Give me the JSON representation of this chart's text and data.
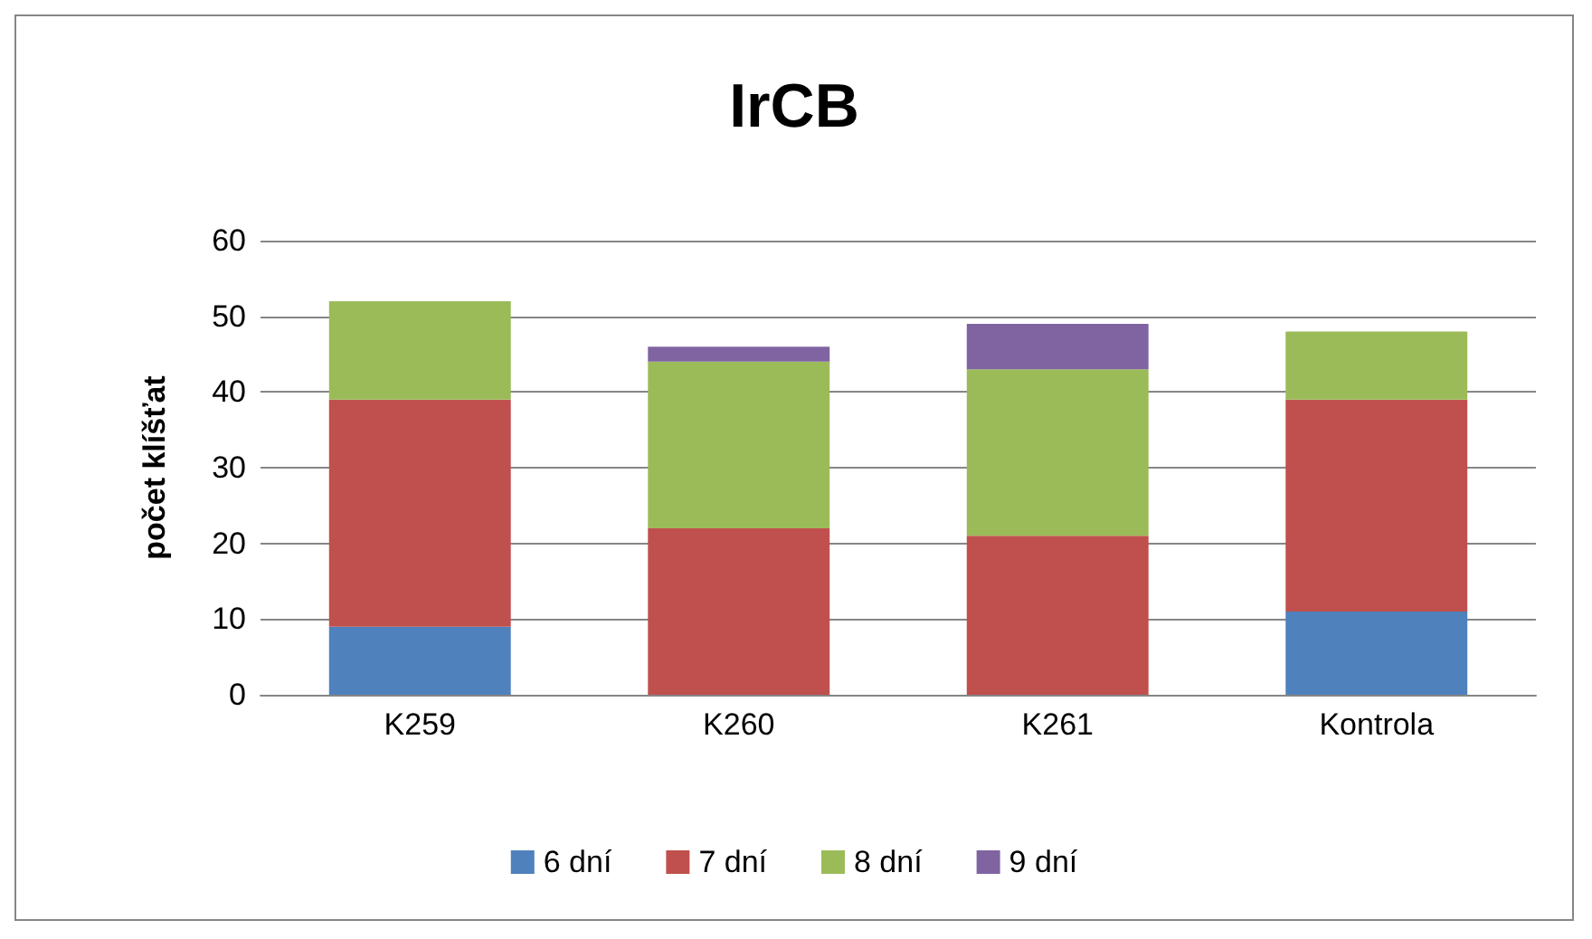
{
  "chart_data": {
    "type": "bar",
    "title": "IrCB",
    "ylabel": "počet klíšťat",
    "categories": [
      "K259",
      "K260",
      "K261",
      "Kontrola"
    ],
    "series": [
      {
        "name": "6 dní",
        "color": "#4f81bd",
        "values": [
          9,
          0,
          0,
          11
        ]
      },
      {
        "name": "7 dní",
        "color": "#c0504d",
        "values": [
          30,
          22,
          21,
          28
        ]
      },
      {
        "name": "8 dní",
        "color": "#9bbb59",
        "values": [
          13,
          22,
          22,
          9
        ]
      },
      {
        "name": "9 dní",
        "color": "#8064a2",
        "values": [
          0,
          2,
          6,
          0
        ]
      }
    ],
    "stacked": true,
    "ylim": [
      0,
      60
    ],
    "yticks": [
      0,
      10,
      20,
      30,
      40,
      50,
      60
    ],
    "grid": "y",
    "legend": "bottom"
  }
}
